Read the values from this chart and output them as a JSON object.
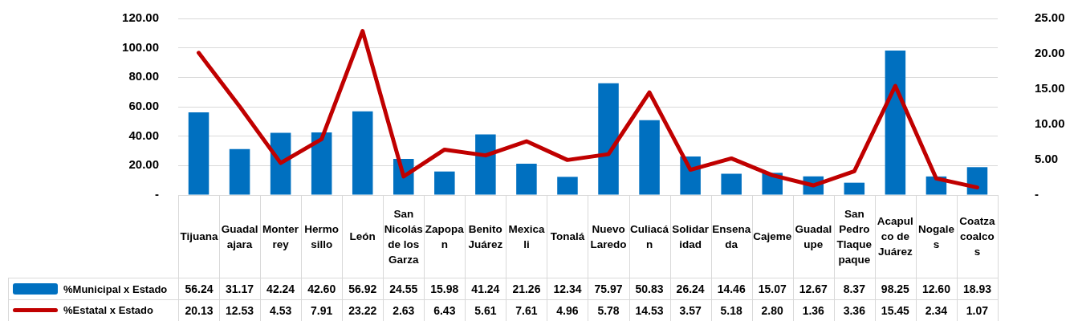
{
  "chart_data": {
    "type": "bar",
    "categories": [
      "Tijuana",
      "Guadalajara",
      "Monterrey",
      "Hermosillo",
      "León",
      "San Nicolás de los Garza",
      "Zapopan",
      "Benito Juárez",
      "Mexicali",
      "Tonalá",
      "Nuevo Laredo",
      "Culiacán",
      "Solidaridad",
      "Ensenada",
      "Cajeme",
      "Guadalupe",
      "San Pedro Tlaquepaque",
      "Acapulco de Juárez",
      "Nogales",
      "Coatzacoalcos"
    ],
    "series": [
      {
        "name": "%Municipal x Estado",
        "color": "#0070c0",
        "values": [
          56.24,
          31.17,
          42.24,
          42.6,
          56.92,
          24.55,
          15.98,
          41.24,
          21.26,
          12.34,
          75.97,
          50.83,
          26.24,
          14.46,
          15.07,
          12.67,
          8.37,
          98.25,
          12.6,
          18.93
        ],
        "value_labels": [
          "56.24",
          "31.17",
          "42.24",
          "42.60",
          "56.92",
          "24.55",
          "15.98",
          "41.24",
          "21.26",
          "12.34",
          "75.97",
          "50.83",
          "26.24",
          "14.46",
          "15.07",
          "12.67",
          "8.37",
          "98.25",
          "12.60",
          "18.93"
        ]
      },
      {
        "name": "%Estatal x Estado",
        "type": "line",
        "axis": "y2",
        "color": "#c00000",
        "values": [
          20.13,
          12.53,
          4.53,
          7.91,
          23.22,
          2.63,
          6.43,
          5.61,
          7.61,
          4.96,
          5.78,
          14.53,
          3.57,
          5.18,
          2.8,
          1.36,
          3.36,
          15.45,
          2.34,
          1.07
        ],
        "value_labels": [
          "20.13",
          "12.53",
          "4.53",
          "7.91",
          "23.22",
          "2.63",
          "6.43",
          "5.61",
          "7.61",
          "4.96",
          "5.78",
          "14.53",
          "3.57",
          "5.18",
          "2.80",
          "1.36",
          "3.36",
          "15.45",
          "2.34",
          "1.07"
        ]
      }
    ],
    "ylim": [
      0,
      120
    ],
    "yticks": [
      {
        "value": 0,
        "label": "-"
      },
      {
        "value": 20,
        "label": "20.00"
      },
      {
        "value": 40,
        "label": "40.00"
      },
      {
        "value": 60,
        "label": "60.00"
      },
      {
        "value": 80,
        "label": "80.00"
      },
      {
        "value": 100,
        "label": "100.00"
      },
      {
        "value": 120,
        "label": "120.00"
      }
    ],
    "y2lim": [
      0,
      25
    ],
    "y2ticks": [
      {
        "value": 0,
        "label": "-"
      },
      {
        "value": 5,
        "label": "5.00"
      },
      {
        "value": 10,
        "label": "10.00"
      },
      {
        "value": 15,
        "label": "15.00"
      },
      {
        "value": 20,
        "label": "20.00"
      },
      {
        "value": 25,
        "label": "25.00"
      }
    ],
    "grid": "y",
    "legend": "bottom left",
    "marker": "none",
    "line_style": "solid"
  }
}
